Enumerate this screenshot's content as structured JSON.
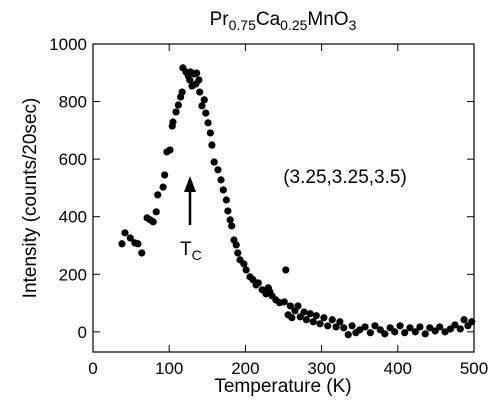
{
  "chart_data": {
    "type": "scatter",
    "title": "Pr0.75Ca0.25MnO3",
    "x_label": "Temperature (K)",
    "y_label": "Intensity (counts/20sec)",
    "annotations": [
      "(3.25,3.25,3.5)",
      "TC"
    ],
    "color": "#000000",
    "xlim": [
      0,
      500
    ],
    "xticks": [
      0,
      100,
      200,
      300,
      400,
      500
    ],
    "ylim": [
      -70,
      1000
    ],
    "yticks": [
      0,
      200,
      400,
      600,
      800,
      1000
    ],
    "x": [
      38,
      42,
      49,
      55,
      59,
      64,
      71,
      75,
      79,
      83,
      85,
      92,
      94,
      97,
      101,
      104,
      105,
      109,
      112,
      115,
      117,
      118,
      122,
      125,
      127,
      130,
      128,
      133,
      135,
      136,
      139,
      140,
      143,
      146,
      148,
      151,
      154,
      156,
      159,
      164,
      168,
      171,
      175,
      177,
      180,
      182,
      185,
      188,
      190,
      193,
      198,
      201,
      206,
      210,
      214,
      217,
      222,
      227,
      230,
      232,
      235,
      240,
      245,
      251,
      253,
      256,
      259,
      261,
      265,
      269,
      272,
      277,
      280,
      285,
      289,
      293,
      298,
      303,
      308,
      314,
      319,
      324,
      329,
      335,
      340,
      345,
      350,
      357,
      364,
      370,
      377,
      383,
      390,
      396,
      403,
      409,
      416,
      423,
      429,
      436,
      442,
      449,
      455,
      462,
      469,
      475,
      482,
      487,
      492,
      497
    ],
    "values": [
      306,
      344,
      326,
      309,
      306,
      274,
      396,
      389,
      382,
      417,
      476,
      503,
      545,
      625,
      632,
      715,
      729,
      764,
      788,
      816,
      833,
      917,
      903,
      889,
      875,
      854,
      903,
      896,
      861,
      899,
      875,
      833,
      785,
      806,
      760,
      726,
      691,
      649,
      590,
      563,
      528,
      493,
      458,
      420,
      389,
      368,
      319,
      302,
      274,
      250,
      236,
      215,
      191,
      181,
      163,
      170,
      146,
      132,
      153,
      139,
      125,
      111,
      101,
      104,
      215,
      59,
      90,
      49,
      73,
      90,
      52,
      69,
      42,
      63,
      35,
      56,
      28,
      49,
      21,
      42,
      17,
      35,
      14,
      -10,
      21,
      -3,
      7,
      17,
      -3,
      21,
      7,
      -7,
      14,
      0,
      21,
      -3,
      14,
      0,
      17,
      -7,
      14,
      3,
      17,
      0,
      10,
      24,
      10,
      42,
      21,
      35
    ]
  }
}
